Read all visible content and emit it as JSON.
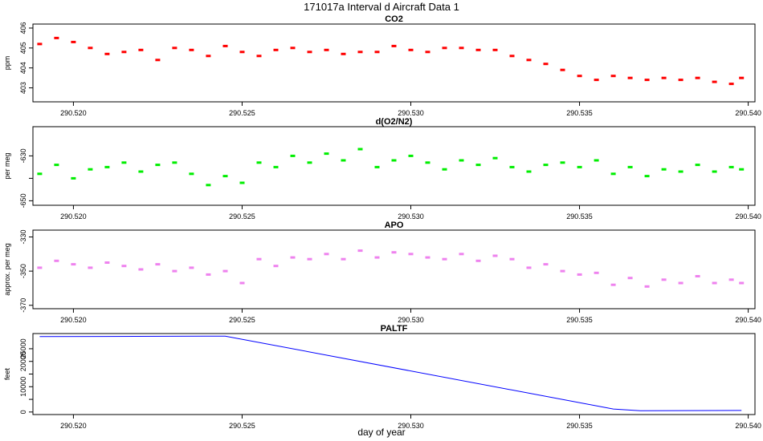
{
  "figure": {
    "title": "171017a   Interval d Aircraft Data 1",
    "xlabel": "day of year"
  },
  "chart_data": [
    {
      "type": "scatter",
      "title": "CO2",
      "ylabel": "ppm",
      "color": "#ff0000",
      "xlim": [
        290.5188,
        290.5402
      ],
      "ylim": [
        402.3,
        406.2
      ],
      "yticks": [
        403,
        404,
        405,
        406
      ],
      "xticks": [
        290.52,
        290.525,
        290.53,
        290.535,
        290.54
      ],
      "xtick_labels": [
        "290.520",
        "290.525",
        "290.530",
        "290.535",
        "290.540"
      ],
      "x": [
        290.519,
        290.5195,
        290.52,
        290.5205,
        290.521,
        290.5215,
        290.522,
        290.5225,
        290.523,
        290.5235,
        290.524,
        290.5245,
        290.525,
        290.5255,
        290.526,
        290.5265,
        290.527,
        290.5275,
        290.528,
        290.5285,
        290.529,
        290.5295,
        290.53,
        290.5305,
        290.531,
        290.5315,
        290.532,
        290.5325,
        290.533,
        290.5335,
        290.534,
        290.5345,
        290.535,
        290.5355,
        290.536,
        290.5365,
        290.537,
        290.5375,
        290.538,
        290.5385,
        290.539,
        290.5395,
        290.5398
      ],
      "values": [
        405.2,
        405.5,
        405.3,
        405.0,
        404.7,
        404.8,
        404.9,
        404.4,
        405.0,
        404.9,
        404.6,
        405.1,
        404.8,
        404.6,
        404.9,
        405.0,
        404.8,
        404.9,
        404.7,
        404.8,
        404.8,
        405.1,
        404.9,
        404.8,
        405.0,
        405.0,
        404.9,
        404.9,
        404.6,
        404.4,
        404.2,
        403.9,
        403.6,
        403.4,
        403.6,
        403.5,
        403.4,
        403.5,
        403.4,
        403.5,
        403.3,
        403.2,
        403.5
      ]
    },
    {
      "type": "scatter",
      "title": "d(O2/N2)",
      "ylabel": "per meg",
      "color": "#00ee00",
      "xlim": [
        290.5188,
        290.5402
      ],
      "ylim": [
        -652,
        -617
      ],
      "yticks": [
        -650,
        -640,
        -630
      ],
      "ytick_labels": [
        "-650",
        "",
        "-630"
      ],
      "xticks": [
        290.52,
        290.525,
        290.53,
        290.535,
        290.54
      ],
      "xtick_labels": [
        "290.520",
        "290.525",
        "290.530",
        "290.535",
        "290.540"
      ],
      "x": [
        290.519,
        290.5195,
        290.52,
        290.5205,
        290.521,
        290.5215,
        290.522,
        290.5225,
        290.523,
        290.5235,
        290.524,
        290.5245,
        290.525,
        290.5255,
        290.526,
        290.5265,
        290.527,
        290.5275,
        290.528,
        290.5285,
        290.529,
        290.5295,
        290.53,
        290.5305,
        290.531,
        290.5315,
        290.532,
        290.5325,
        290.533,
        290.5335,
        290.534,
        290.5345,
        290.535,
        290.5355,
        290.536,
        290.5365,
        290.537,
        290.5375,
        290.538,
        290.5385,
        290.539,
        290.5395,
        290.5398
      ],
      "values": [
        -638,
        -634,
        -640,
        -636,
        -635,
        -633,
        -637,
        -634,
        -633,
        -638,
        -643,
        -639,
        -642,
        -633,
        -635,
        -630,
        -633,
        -629,
        -632,
        -627,
        -635,
        -632,
        -630,
        -633,
        -636,
        -632,
        -634,
        -631,
        -635,
        -637,
        -634,
        -633,
        -635,
        -632,
        -638,
        -635,
        -639,
        -636,
        -637,
        -634,
        -637,
        -635,
        -636
      ]
    },
    {
      "type": "scatter",
      "title": "APO",
      "ylabel": "approx. per meg",
      "color": "#ee82ee",
      "xlim": [
        290.5188,
        290.5402
      ],
      "ylim": [
        -372,
        -326
      ],
      "yticks": [
        -370,
        -350,
        -330
      ],
      "xticks": [
        290.52,
        290.525,
        290.53,
        290.535,
        290.54
      ],
      "xtick_labels": [
        "290.520",
        "290.525",
        "290.530",
        "290.535",
        "290.540"
      ],
      "x": [
        290.519,
        290.5195,
        290.52,
        290.5205,
        290.521,
        290.5215,
        290.522,
        290.5225,
        290.523,
        290.5235,
        290.524,
        290.5245,
        290.525,
        290.5255,
        290.526,
        290.5265,
        290.527,
        290.5275,
        290.528,
        290.5285,
        290.529,
        290.5295,
        290.53,
        290.5305,
        290.531,
        290.5315,
        290.532,
        290.5325,
        290.533,
        290.5335,
        290.534,
        290.5345,
        290.535,
        290.5355,
        290.536,
        290.5365,
        290.537,
        290.5375,
        290.538,
        290.5385,
        290.539,
        290.5395,
        290.5398
      ],
      "values": [
        -348,
        -344,
        -346,
        -348,
        -345,
        -347,
        -349,
        -346,
        -350,
        -348,
        -352,
        -350,
        -357,
        -343,
        -347,
        -342,
        -343,
        -340,
        -343,
        -338,
        -342,
        -339,
        -340,
        -342,
        -343,
        -340,
        -344,
        -341,
        -343,
        -348,
        -346,
        -350,
        -352,
        -351,
        -358,
        -354,
        -359,
        -355,
        -357,
        -353,
        -357,
        -355,
        -357
      ]
    },
    {
      "type": "line",
      "title": "PALTF",
      "ylabel": "feet",
      "color": "#0000ff",
      "xlim": [
        290.5188,
        290.5402
      ],
      "ylim": [
        -1000,
        31000
      ],
      "yticks": [
        0,
        5000,
        10000,
        15000,
        20000,
        25000
      ],
      "ytick_labels": [
        "0",
        "",
        "10000",
        "",
        "20000",
        "25000"
      ],
      "xticks": [
        290.52,
        290.525,
        290.53,
        290.535,
        290.54
      ],
      "xtick_labels": [
        "290.520",
        "290.525",
        "290.530",
        "290.535",
        "290.540"
      ],
      "x": [
        290.519,
        290.5245,
        290.536,
        290.5368,
        290.5398
      ],
      "values": [
        29800,
        30000,
        1200,
        500,
        600
      ]
    }
  ]
}
